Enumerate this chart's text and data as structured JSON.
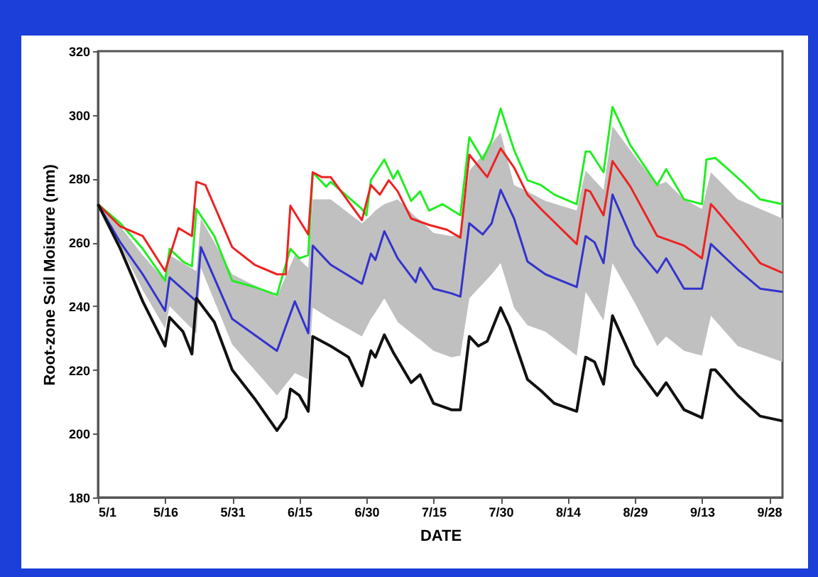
{
  "chart_data": {
    "type": "line",
    "xlabel": "DATE",
    "ylabel": "Root-zone Soil Moisture (mm)",
    "xlim": [
      "--05-01",
      "--10-01"
    ],
    "xticks": [
      {
        "value": "--05-01",
        "label": "5/1"
      },
      {
        "value": "--05-16",
        "label": "5/16"
      },
      {
        "value": "--05-31",
        "label": "5/31"
      },
      {
        "value": "--06-15",
        "label": "6/15"
      },
      {
        "value": "--06-30",
        "label": "6/30"
      },
      {
        "value": "--07-15",
        "label": "7/15"
      },
      {
        "value": "--07-30",
        "label": "7/30"
      },
      {
        "value": "--08-14",
        "label": "8/14"
      },
      {
        "value": "--08-29",
        "label": "8/29"
      },
      {
        "value": "--09-13",
        "label": "9/13"
      },
      {
        "value": "--09-28",
        "label": "9/28"
      }
    ],
    "ylim": [
      180,
      320
    ],
    "yticks": [
      180,
      200,
      220,
      240,
      260,
      280,
      300,
      320
    ],
    "grid": false,
    "marker": "none",
    "series": [
      {
        "color": "#22ee22",
        "x": [
          "--05-01",
          "--05-06",
          "--05-11",
          "--05-16",
          "--05-17",
          "--05-20",
          "--05-22",
          "--05-23",
          "--05-27",
          "--05-31",
          "--06-05",
          "--06-10",
          "--06-13",
          "--06-15",
          "--06-17",
          "--06-18",
          "--06-21",
          "--06-22",
          "--06-29",
          "--06-30",
          "--07-01",
          "--07-04",
          "--07-06",
          "--07-07",
          "--07-10",
          "--07-12",
          "--07-14",
          "--07-17",
          "--07-21",
          "--07-23",
          "--07-26",
          "--07-28",
          "--07-30",
          "--08-02",
          "--08-05",
          "--08-08",
          "--08-11",
          "--08-16",
          "--08-18",
          "--08-19",
          "--08-22",
          "--08-24",
          "--08-28",
          "--09-03",
          "--09-05",
          "--09-09",
          "--09-13",
          "--09-14",
          "--09-16",
          "--09-22",
          "--09-26",
          "--10-01"
        ],
        "values": [
          272,
          266,
          258,
          248,
          258,
          254,
          252.5,
          270.5,
          262,
          248,
          246,
          243.5,
          258,
          255,
          256,
          282,
          277.5,
          279,
          270.5,
          268.5,
          279.5,
          286,
          280,
          282.5,
          273,
          276,
          270,
          272,
          268.5,
          293,
          286,
          292,
          302,
          289,
          279.5,
          278,
          275,
          272,
          288.5,
          288.5,
          282,
          302.5,
          290.5,
          278,
          283,
          273.5,
          272,
          286,
          286.5,
          279,
          273.5,
          272
        ]
      },
      {
        "color": "#ee2222",
        "x": [
          "--05-01",
          "--05-06",
          "--05-11",
          "--05-16",
          "--05-19",
          "--05-22",
          "--05-23",
          "--05-25",
          "--05-31",
          "--06-05",
          "--06-10",
          "--06-12",
          "--06-13",
          "--06-17",
          "--06-18",
          "--06-20",
          "--06-22",
          "--06-29",
          "--07-01",
          "--07-03",
          "--07-05",
          "--07-07",
          "--07-10",
          "--07-14",
          "--07-18",
          "--07-21",
          "--07-23",
          "--07-27",
          "--07-30",
          "--08-02",
          "--08-05",
          "--08-08",
          "--08-16",
          "--08-18",
          "--08-19",
          "--08-22",
          "--08-24",
          "--08-28",
          "--09-03",
          "--09-09",
          "--09-13",
          "--09-15",
          "--09-16",
          "--09-22",
          "--09-26",
          "--10-01"
        ],
        "values": [
          272,
          265,
          262,
          251,
          264.5,
          262,
          279,
          278,
          258.5,
          253,
          250,
          250,
          271.5,
          262.5,
          282,
          280.5,
          280.5,
          267,
          278,
          275,
          279.5,
          276,
          267.5,
          265.5,
          264,
          261.5,
          287.5,
          280.5,
          289.5,
          283.5,
          275,
          270.5,
          259.5,
          276.5,
          276,
          268.5,
          285.5,
          277.5,
          262,
          259,
          255,
          272,
          270.5,
          260.5,
          253.5,
          250.5
        ]
      },
      {
        "color": "#3333cc",
        "x": [
          "--05-01",
          "--05-06",
          "--05-11",
          "--05-16",
          "--05-17",
          "--05-23",
          "--05-24",
          "--05-31",
          "--06-05",
          "--06-10",
          "--06-14",
          "--06-17",
          "--06-18",
          "--06-22",
          "--06-29",
          "--07-01",
          "--07-02",
          "--07-04",
          "--07-07",
          "--07-11",
          "--07-12",
          "--07-15",
          "--07-19",
          "--07-21",
          "--07-23",
          "--07-26",
          "--07-28",
          "--07-30",
          "--08-02",
          "--08-05",
          "--08-09",
          "--08-16",
          "--08-18",
          "--08-20",
          "--08-22",
          "--08-24",
          "--08-29",
          "--09-03",
          "--09-05",
          "--09-09",
          "--09-13",
          "--09-15",
          "--09-21",
          "--09-26",
          "--10-01"
        ],
        "values": [
          272,
          260,
          250,
          238.5,
          249,
          241.5,
          258.5,
          236,
          231,
          226,
          241.5,
          231.5,
          259,
          253,
          247,
          256.5,
          254.5,
          263.5,
          255,
          247.5,
          252,
          245.5,
          244,
          243,
          266,
          262.5,
          266,
          276.5,
          267.5,
          254,
          250,
          246,
          262,
          260,
          253.5,
          275,
          259,
          250.5,
          255,
          245.5,
          245.5,
          259.5,
          251.5,
          245.5,
          244.5
        ],
        "lower": [
          272,
          259,
          245,
          233,
          240,
          231.5,
          252,
          228,
          220,
          212,
          219,
          217,
          239.5,
          236,
          230.5,
          236,
          238,
          242.5,
          235,
          230.5,
          229.5,
          226,
          224,
          224.5,
          242.5,
          247,
          250,
          253.5,
          239.5,
          234,
          232,
          224.5,
          244.5,
          240,
          235.5,
          253.5,
          241,
          227.5,
          230.5,
          226,
          224.5,
          237,
          227.5,
          225,
          222.5
        ],
        "upper": [
          272,
          265,
          256,
          248,
          256,
          251,
          267.5,
          250,
          246.5,
          243,
          256,
          252,
          273.5,
          273.5,
          266,
          268.5,
          270,
          272,
          273.5,
          268,
          267,
          263,
          262,
          262.5,
          282.5,
          287.5,
          291,
          294.5,
          278,
          276,
          273,
          270,
          282.5,
          279.5,
          276.5,
          296.5,
          287,
          278,
          279,
          273.5,
          270.5,
          282,
          273.5,
          270.5,
          267.5
        ]
      },
      {
        "color": "#111111",
        "x": [
          "--05-01",
          "--05-06",
          "--05-11",
          "--05-16",
          "--05-17",
          "--05-20",
          "--05-22",
          "--05-23",
          "--05-27",
          "--05-31",
          "--06-05",
          "--06-10",
          "--06-12",
          "--06-13",
          "--06-15",
          "--06-17",
          "--06-18",
          "--06-22",
          "--06-26",
          "--06-29",
          "--07-01",
          "--07-02",
          "--07-04",
          "--07-06",
          "--07-10",
          "--07-12",
          "--07-15",
          "--07-19",
          "--07-21",
          "--07-23",
          "--07-25",
          "--07-27",
          "--07-30",
          "--08-01",
          "--08-05",
          "--08-08",
          "--08-11",
          "--08-16",
          "--08-18",
          "--08-20",
          "--08-22",
          "--08-24",
          "--08-29",
          "--09-03",
          "--09-05",
          "--09-09",
          "--09-13",
          "--09-15",
          "--09-16",
          "--09-21",
          "--09-26",
          "--10-01"
        ],
        "values": [
          272,
          258,
          241.5,
          227.5,
          236.5,
          232,
          225,
          242.5,
          235,
          220,
          211,
          201,
          205,
          214,
          212,
          207,
          230.5,
          227.5,
          224,
          215,
          226,
          224,
          231,
          225.5,
          216,
          218.5,
          209.5,
          207.5,
          207.5,
          230.5,
          227.5,
          229,
          239.5,
          233.5,
          217,
          213.5,
          209.5,
          207,
          224,
          222.5,
          215.5,
          237,
          221.5,
          212,
          216,
          207.5,
          205,
          220,
          220,
          212,
          205.5,
          204
        ]
      }
    ]
  }
}
